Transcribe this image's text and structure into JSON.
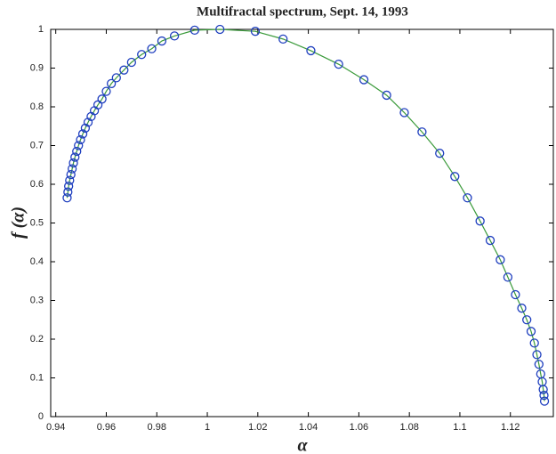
{
  "chart_data": {
    "type": "scatter",
    "title": "Multifractal spectrum, Sept. 14, 1993",
    "xlabel": "α",
    "ylabel": "f (α)",
    "x": [
      0.9445,
      0.9448,
      0.9451,
      0.9455,
      0.946,
      0.9465,
      0.947,
      0.9476,
      0.9483,
      0.949,
      0.9498,
      0.9507,
      0.9517,
      0.9528,
      0.954,
      0.9553,
      0.9567,
      0.9583,
      0.96,
      0.962,
      0.964,
      0.967,
      0.97,
      0.974,
      0.978,
      0.982,
      0.987,
      0.995,
      1.005,
      1.019,
      1.03,
      1.041,
      1.052,
      1.062,
      1.071,
      1.078,
      1.085,
      1.092,
      1.098,
      1.103,
      1.108,
      1.112,
      1.116,
      1.119,
      1.122,
      1.1245,
      1.1265,
      1.1282,
      1.1295,
      1.1305,
      1.1313,
      1.132,
      1.1326,
      1.133,
      1.1333,
      1.1335
    ],
    "series": [
      {
        "marker_color": "#1f3fbf",
        "line_color": "#3a9a3a",
        "values": [
          0.565,
          0.58,
          0.595,
          0.61,
          0.625,
          0.64,
          0.655,
          0.67,
          0.685,
          0.7,
          0.715,
          0.73,
          0.745,
          0.76,
          0.775,
          0.79,
          0.805,
          0.82,
          0.84,
          0.86,
          0.875,
          0.895,
          0.915,
          0.935,
          0.95,
          0.97,
          0.983,
          0.998,
          1.0,
          0.995,
          0.975,
          0.945,
          0.91,
          0.87,
          0.83,
          0.785,
          0.735,
          0.68,
          0.62,
          0.565,
          0.505,
          0.455,
          0.405,
          0.36,
          0.315,
          0.28,
          0.25,
          0.22,
          0.19,
          0.16,
          0.135,
          0.11,
          0.09,
          0.07,
          0.055,
          0.04
        ]
      }
    ],
    "xlim": [
      0.938,
      1.137
    ],
    "xticks": [
      0.94,
      0.96,
      0.98,
      1,
      1.02,
      1.04,
      1.06,
      1.08,
      1.1,
      1.12
    ],
    "ylim": [
      0,
      1
    ],
    "yticks": [
      0,
      0.1,
      0.2,
      0.3,
      0.4,
      0.5,
      0.6,
      0.7,
      0.8,
      0.9,
      1
    ],
    "grid": false
  }
}
